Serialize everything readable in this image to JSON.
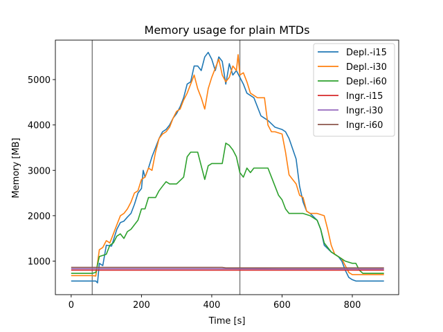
{
  "chart_data": {
    "type": "line",
    "title": "Memory usage for plain MTDs",
    "xlabel": "Time [s]",
    "ylabel": "Memory [MB]",
    "xlim": [
      -45,
      932
    ],
    "ylim": [
      260,
      5870
    ],
    "xticks": [
      0,
      200,
      400,
      600,
      800
    ],
    "yticks": [
      1000,
      2000,
      3000,
      4000,
      5000
    ],
    "grid": false,
    "legend_position": "top-right",
    "vlines": [
      {
        "x": 60,
        "color": "#808080"
      },
      {
        "x": 480,
        "color": "#808080"
      }
    ],
    "series": [
      {
        "name": "Depl.-i15",
        "color": "#1f77b4",
        "points": [
          [
            0,
            560
          ],
          [
            20,
            560
          ],
          [
            40,
            560
          ],
          [
            60,
            560
          ],
          [
            70,
            560
          ],
          [
            75,
            520
          ],
          [
            80,
            950
          ],
          [
            90,
            900
          ],
          [
            100,
            1350
          ],
          [
            115,
            1330
          ],
          [
            130,
            1700
          ],
          [
            140,
            1850
          ],
          [
            150,
            1880
          ],
          [
            160,
            1970
          ],
          [
            170,
            2050
          ],
          [
            180,
            2250
          ],
          [
            190,
            2500
          ],
          [
            200,
            2600
          ],
          [
            205,
            3000
          ],
          [
            210,
            2850
          ],
          [
            220,
            3050
          ],
          [
            230,
            3300
          ],
          [
            240,
            3500
          ],
          [
            250,
            3700
          ],
          [
            260,
            3850
          ],
          [
            270,
            3900
          ],
          [
            280,
            4000
          ],
          [
            290,
            4150
          ],
          [
            300,
            4250
          ],
          [
            310,
            4400
          ],
          [
            320,
            4600
          ],
          [
            330,
            4900
          ],
          [
            340,
            4950
          ],
          [
            350,
            5300
          ],
          [
            360,
            5300
          ],
          [
            370,
            5200
          ],
          [
            380,
            5500
          ],
          [
            390,
            5600
          ],
          [
            400,
            5450
          ],
          [
            410,
            5200
          ],
          [
            420,
            5500
          ],
          [
            430,
            5400
          ],
          [
            440,
            4900
          ],
          [
            450,
            5350
          ],
          [
            460,
            5100
          ],
          [
            470,
            5200
          ],
          [
            480,
            5050
          ],
          [
            490,
            4900
          ],
          [
            500,
            4700
          ],
          [
            520,
            4600
          ],
          [
            540,
            4200
          ],
          [
            560,
            4100
          ],
          [
            580,
            3950
          ],
          [
            600,
            3900
          ],
          [
            610,
            3850
          ],
          [
            620,
            3700
          ],
          [
            640,
            3250
          ],
          [
            650,
            2650
          ],
          [
            660,
            2300
          ],
          [
            670,
            2100
          ],
          [
            680,
            2050
          ],
          [
            700,
            1900
          ],
          [
            710,
            1700
          ],
          [
            720,
            1350
          ],
          [
            740,
            1200
          ],
          [
            760,
            1100
          ],
          [
            770,
            1000
          ],
          [
            780,
            800
          ],
          [
            790,
            640
          ],
          [
            800,
            590
          ],
          [
            810,
            560
          ],
          [
            850,
            560
          ],
          [
            890,
            560
          ]
        ]
      },
      {
        "name": "Depl.-i30",
        "color": "#ff7f0e",
        "points": [
          [
            0,
            680
          ],
          [
            40,
            680
          ],
          [
            60,
            680
          ],
          [
            70,
            670
          ],
          [
            80,
            1250
          ],
          [
            90,
            1300
          ],
          [
            100,
            1450
          ],
          [
            110,
            1400
          ],
          [
            120,
            1600
          ],
          [
            130,
            1800
          ],
          [
            140,
            2000
          ],
          [
            150,
            2050
          ],
          [
            160,
            2150
          ],
          [
            170,
            2300
          ],
          [
            180,
            2500
          ],
          [
            190,
            2550
          ],
          [
            200,
            2800
          ],
          [
            210,
            2850
          ],
          [
            220,
            3050
          ],
          [
            230,
            3000
          ],
          [
            240,
            3400
          ],
          [
            250,
            3700
          ],
          [
            260,
            3800
          ],
          [
            270,
            3850
          ],
          [
            280,
            3950
          ],
          [
            290,
            4150
          ],
          [
            300,
            4300
          ],
          [
            310,
            4350
          ],
          [
            320,
            4550
          ],
          [
            330,
            4700
          ],
          [
            340,
            4900
          ],
          [
            350,
            5100
          ],
          [
            360,
            4800
          ],
          [
            370,
            4600
          ],
          [
            380,
            4350
          ],
          [
            390,
            4800
          ],
          [
            400,
            5050
          ],
          [
            410,
            5250
          ],
          [
            420,
            5450
          ],
          [
            430,
            5100
          ],
          [
            440,
            4950
          ],
          [
            450,
            5050
          ],
          [
            460,
            5300
          ],
          [
            470,
            5200
          ],
          [
            475,
            5550
          ],
          [
            480,
            5100
          ],
          [
            490,
            5150
          ],
          [
            500,
            4950
          ],
          [
            510,
            4700
          ],
          [
            530,
            4600
          ],
          [
            550,
            4600
          ],
          [
            560,
            4000
          ],
          [
            570,
            3850
          ],
          [
            580,
            3850
          ],
          [
            600,
            3800
          ],
          [
            610,
            3400
          ],
          [
            620,
            2900
          ],
          [
            630,
            2800
          ],
          [
            640,
            2700
          ],
          [
            650,
            2450
          ],
          [
            660,
            2400
          ],
          [
            670,
            2100
          ],
          [
            680,
            2050
          ],
          [
            700,
            2050
          ],
          [
            720,
            2000
          ],
          [
            730,
            1700
          ],
          [
            740,
            1350
          ],
          [
            750,
            1150
          ],
          [
            760,
            1100
          ],
          [
            770,
            1050
          ],
          [
            780,
            900
          ],
          [
            790,
            750
          ],
          [
            800,
            700
          ],
          [
            820,
            700
          ],
          [
            850,
            700
          ],
          [
            890,
            700
          ]
        ]
      },
      {
        "name": "Depl.-i60",
        "color": "#2ca02c",
        "points": [
          [
            0,
            730
          ],
          [
            40,
            730
          ],
          [
            60,
            730
          ],
          [
            70,
            750
          ],
          [
            80,
            1100
          ],
          [
            100,
            1150
          ],
          [
            110,
            1350
          ],
          [
            120,
            1400
          ],
          [
            130,
            1550
          ],
          [
            140,
            1600
          ],
          [
            150,
            1500
          ],
          [
            160,
            1650
          ],
          [
            170,
            1700
          ],
          [
            180,
            1800
          ],
          [
            190,
            1900
          ],
          [
            200,
            2150
          ],
          [
            210,
            2150
          ],
          [
            220,
            2400
          ],
          [
            240,
            2400
          ],
          [
            250,
            2550
          ],
          [
            260,
            2650
          ],
          [
            270,
            2750
          ],
          [
            280,
            2700
          ],
          [
            300,
            2700
          ],
          [
            320,
            2850
          ],
          [
            330,
            3300
          ],
          [
            340,
            3400
          ],
          [
            360,
            3400
          ],
          [
            370,
            3100
          ],
          [
            380,
            2800
          ],
          [
            390,
            3100
          ],
          [
            400,
            3150
          ],
          [
            410,
            3150
          ],
          [
            420,
            3150
          ],
          [
            430,
            3150
          ],
          [
            440,
            3600
          ],
          [
            450,
            3550
          ],
          [
            460,
            3450
          ],
          [
            470,
            3300
          ],
          [
            480,
            2950
          ],
          [
            490,
            2850
          ],
          [
            500,
            3050
          ],
          [
            510,
            2950
          ],
          [
            520,
            3050
          ],
          [
            540,
            3050
          ],
          [
            560,
            3050
          ],
          [
            570,
            2850
          ],
          [
            580,
            2650
          ],
          [
            590,
            2450
          ],
          [
            600,
            2350
          ],
          [
            610,
            2150
          ],
          [
            620,
            2050
          ],
          [
            640,
            2050
          ],
          [
            660,
            2050
          ],
          [
            680,
            2000
          ],
          [
            700,
            1900
          ],
          [
            710,
            1700
          ],
          [
            720,
            1400
          ],
          [
            740,
            1200
          ],
          [
            760,
            1100
          ],
          [
            780,
            1000
          ],
          [
            800,
            950
          ],
          [
            810,
            950
          ],
          [
            820,
            800
          ],
          [
            830,
            730
          ],
          [
            850,
            730
          ],
          [
            890,
            730
          ]
        ]
      },
      {
        "name": "Ingr.-i15",
        "color": "#d62728",
        "points": [
          [
            0,
            800
          ],
          [
            200,
            800
          ],
          [
            400,
            800
          ],
          [
            600,
            800
          ],
          [
            800,
            800
          ],
          [
            890,
            800
          ]
        ]
      },
      {
        "name": "Ingr.-i30",
        "color": "#9467bd",
        "points": [
          [
            0,
            830
          ],
          [
            200,
            830
          ],
          [
            400,
            830
          ],
          [
            600,
            825
          ],
          [
            800,
            825
          ],
          [
            890,
            825
          ]
        ]
      },
      {
        "name": "Ingr.-i60",
        "color": "#8c564b",
        "points": [
          [
            0,
            860
          ],
          [
            200,
            860
          ],
          [
            400,
            860
          ],
          [
            430,
            860
          ],
          [
            440,
            850
          ],
          [
            600,
            850
          ],
          [
            800,
            850
          ],
          [
            890,
            850
          ]
        ]
      }
    ]
  }
}
